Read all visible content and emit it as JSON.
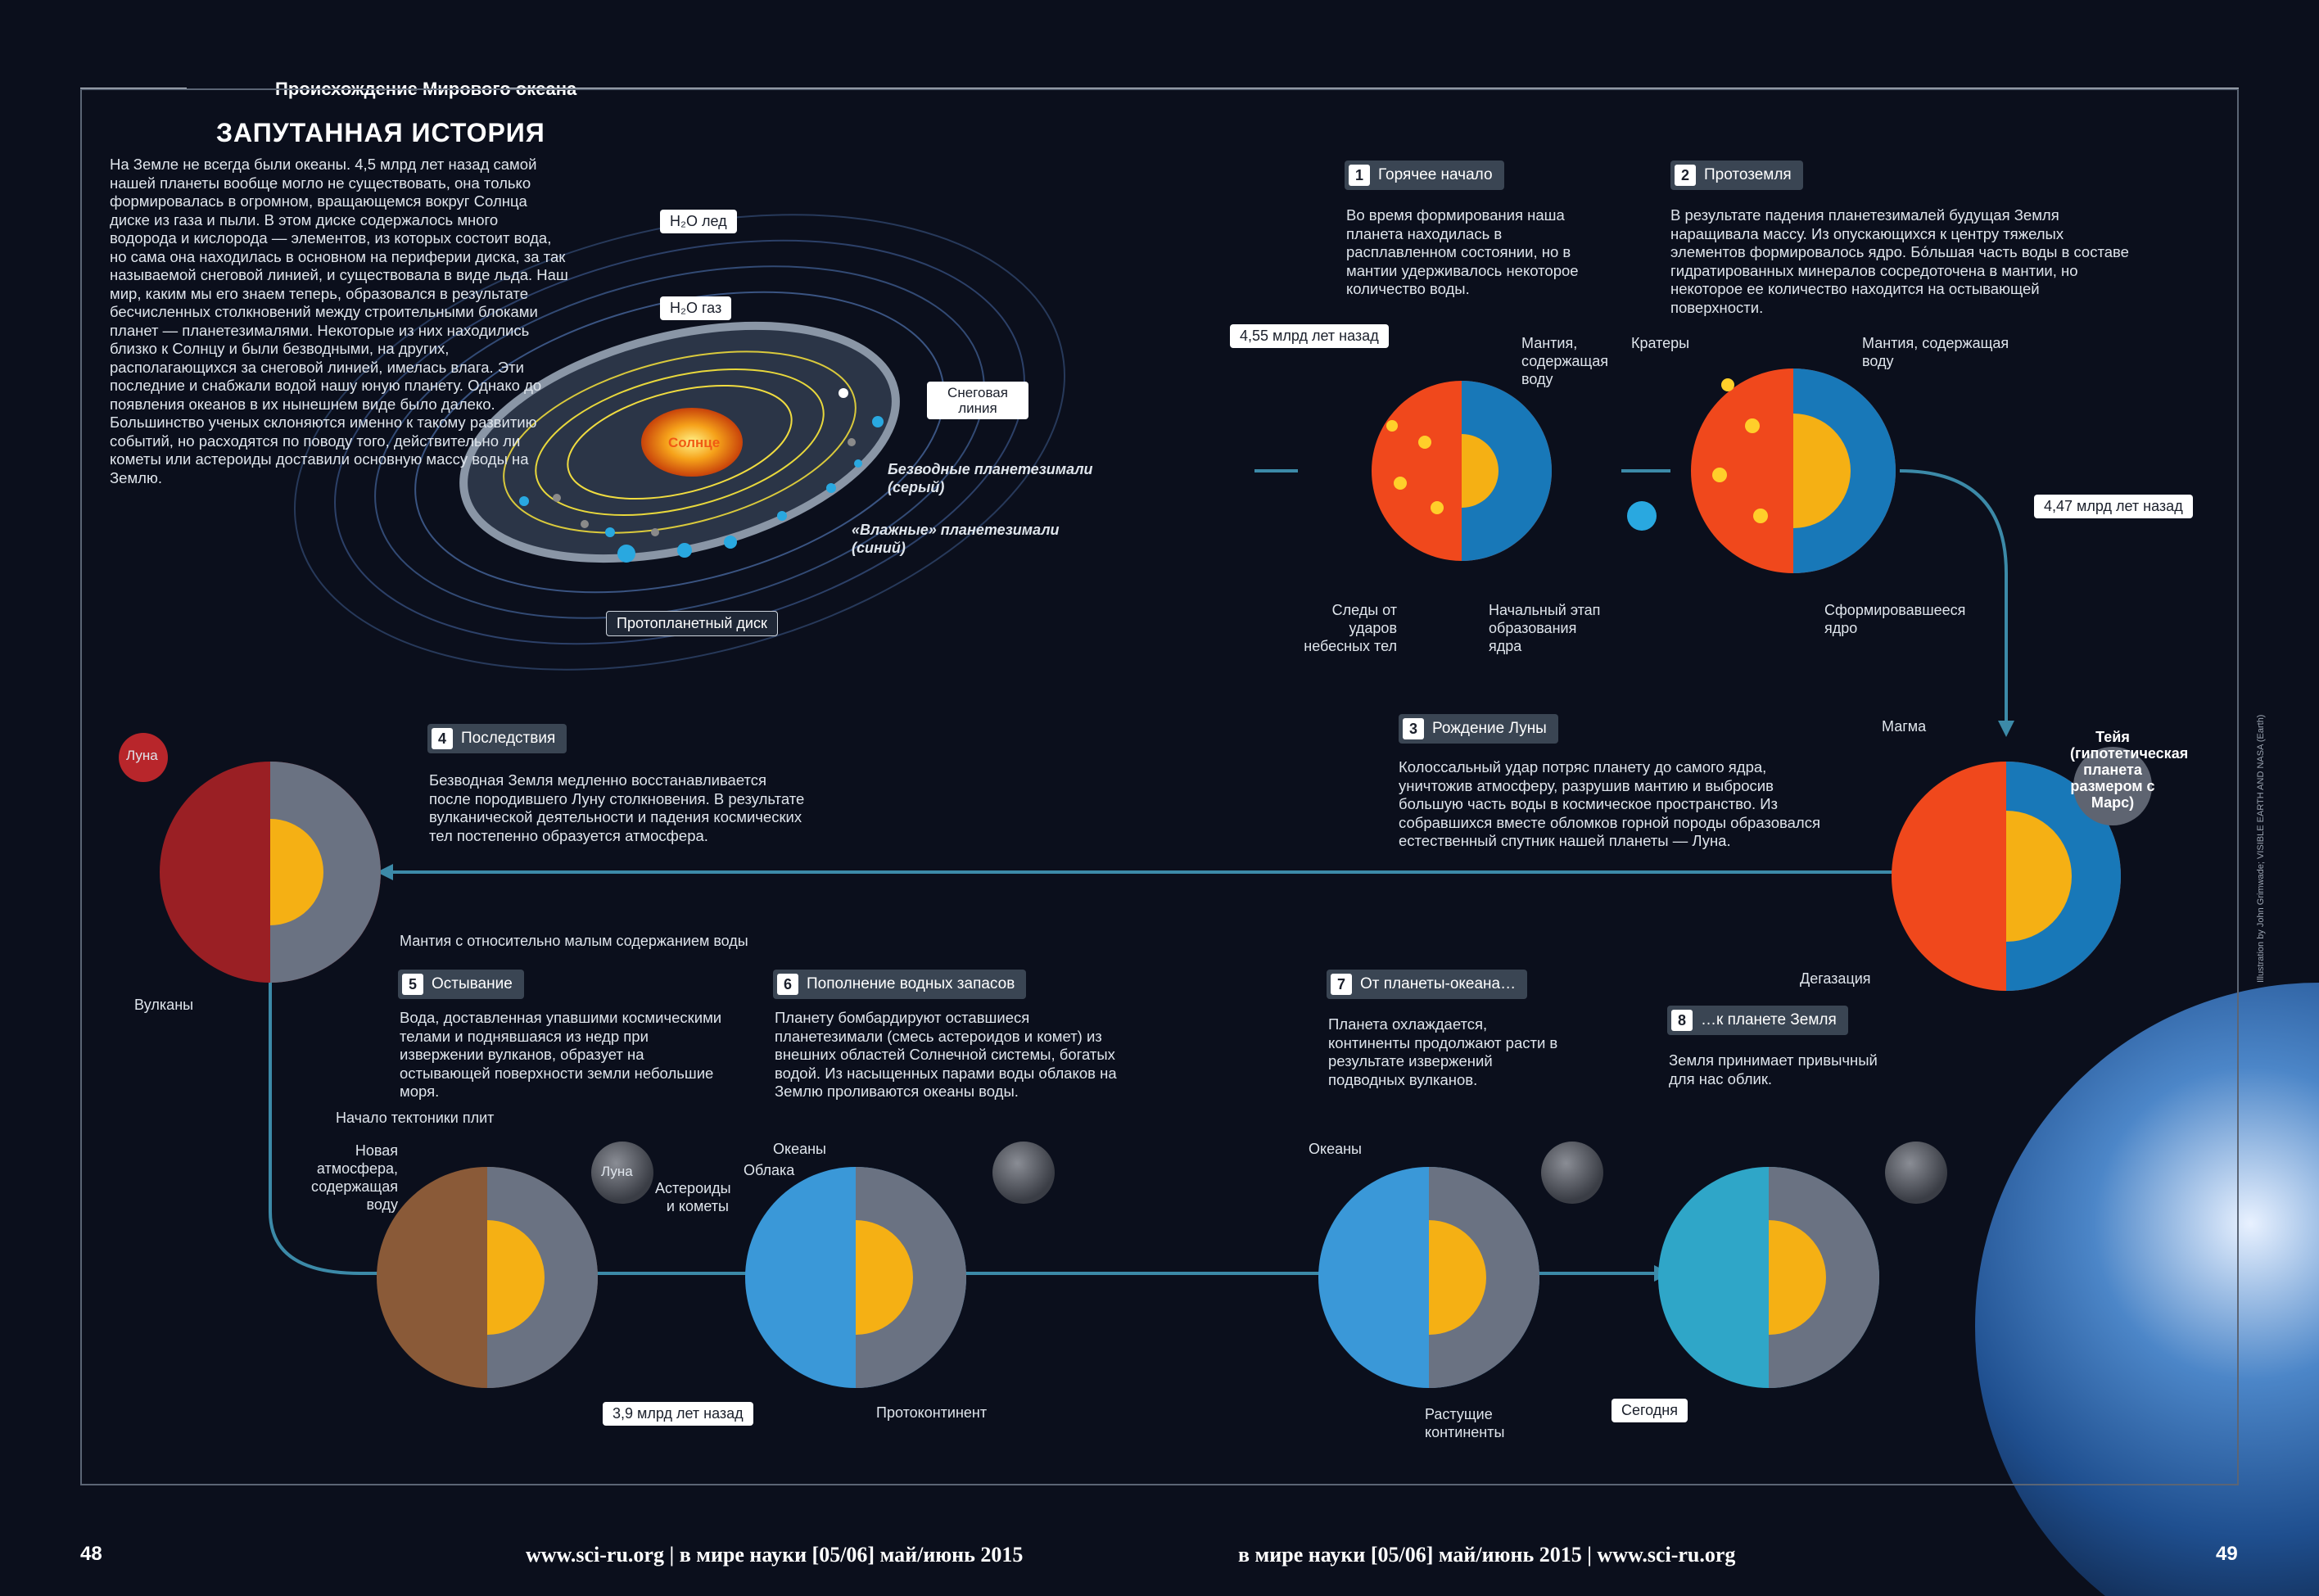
{
  "header": {
    "section_title": "Происхождение Мирового океана",
    "main_title": "ЗАПУТАННАЯ ИСТОРИЯ"
  },
  "intro_text": "На Земле не всегда были океаны. 4,5 млрд лет назад самой нашей планеты вообще могло не существовать, она только формировалась в огромном, вращающемся вокруг Солнца диске из газа и пыли. В этом диске содержалось много водорода и кислорода — элементов, из которых состоит вода, но сама она находилась в основном на периферии диска, за так называемой снеговой линией, и существовала в виде льда. Наш мир, каким мы его знаем теперь, образовался в результате бесчисленных столкновений между строительными блоками планет — планетезималями. Некоторые из них находились близко к Солнцу и были безводными, на других, располагающихся за снеговой линией, имелась влага. Эти последние и снабжали водой нашу юную планету. Однако до появления океанов в их нынешнем виде было далеко. Большинство ученых склоняются именно к такому развитию событий, но расходятся по поводу того, действительно ли кометы или астероиды доставили основную массу воды на Землю.",
  "disk": {
    "h2o_ice": "H₂O лед",
    "h2o_gas": "H₂O газ",
    "snow_line": "Снеговая линия",
    "sun": "Солнце",
    "dry": "Безводные планетезимали (серый)",
    "wet": "«Влажные» планетезимали (синий)",
    "disk_label": "Протопланетный диск"
  },
  "steps": [
    {
      "num": "1",
      "title": "Горячее начало",
      "text": "Во время формирования наша планета находилась в расплавленном состоянии, но в мантии удерживалось некоторое количество воды."
    },
    {
      "num": "2",
      "title": "Протоземля",
      "text": "В результате падения планетезималей будущая Земля наращивала массу. Из опускающихся к центру тяжелых элементов формировалось ядро. Бо́льшая часть воды в составе гидратированных минералов сосредоточена в мантии, но некоторое ее количество находится на остывающей поверхности."
    },
    {
      "num": "3",
      "title": "Рождение Луны",
      "text": "Колоссальный удар потряс планету до самого ядра, уничтожив атмосферу, разрушив мантию и выбросив большую часть воды в космическое пространство. Из собравшихся вместе обломков горной породы образовался естественный спутник нашей планеты — Луна."
    },
    {
      "num": "4",
      "title": "Последствия",
      "text": "Безводная Земля медленно восстанавливается после породившего Луну столкновения. В результате вулканической деятельности и падения космических тел постепенно образуется атмосфера."
    },
    {
      "num": "5",
      "title": "Остывание",
      "text": "Вода, доставленная упавшими космическими телами и поднявшаяся из недр при извержении вулканов, образует на остывающей поверхности земли небольшие моря."
    },
    {
      "num": "6",
      "title": "Пополнение водных запасов",
      "text": "Планету бомбардируют оставшиеся планетезимали (смесь астероидов и комет) из внешних областей Солнечной системы, богатых водой. Из насыщенных парами воды облаков на Землю проливаются океаны воды."
    },
    {
      "num": "7",
      "title": "От планеты-океана…",
      "text": "Планета охлаждается, континенты продолжают расти в результате извержений подводных вулканов."
    },
    {
      "num": "8",
      "title": "…к планете Земля",
      "text": "Земля принимает привычный для нас облик."
    }
  ],
  "times": {
    "t1": "4,55 млрд лет назад",
    "t2": "4,47 млрд лет назад",
    "t3": "3,9 млрд лет назад",
    "t4": "Сегодня"
  },
  "annotations": {
    "mantle_water": "Мантия, содержащая воду",
    "impact_traces": "Следы от ударов небесных тел",
    "core_early": "Начальный этап образования ядра",
    "craters": "Кратеры",
    "mantle_water2": "Мантия, содержащая воду",
    "core_formed": "Сформировавшееся ядро",
    "magma": "Магма",
    "theia": "Тейя (гипотетическая планета размером с Марс)",
    "degassing": "Дегазация",
    "moon": "Луна",
    "volcanoes": "Вулканы",
    "mantle_dry": "Мантия с относительно малым содержанием воды",
    "tectonics": "Начало тектоники плит",
    "new_atmo": "Новая атмосфера, содержащая воду",
    "moon2": "Луна",
    "oceans": "Океаны",
    "clouds": "Облака",
    "asteroids": "Астероиды и кометы",
    "protocontinent": "Протоконтинент",
    "oceans2": "Океаны",
    "growing": "Растущие континенты"
  },
  "footer": {
    "left_page": "48",
    "left_text": "www.sci-ru.org  |  в мире науки [05/06] май/июнь 2015",
    "right_text": "в мире науки [05/06] май/июнь 2015  |  www.sci-ru.org",
    "right_page": "49"
  },
  "credit": "Illustration by John Grimwade; VISIBLE EARTH AND NASA (Earth)"
}
